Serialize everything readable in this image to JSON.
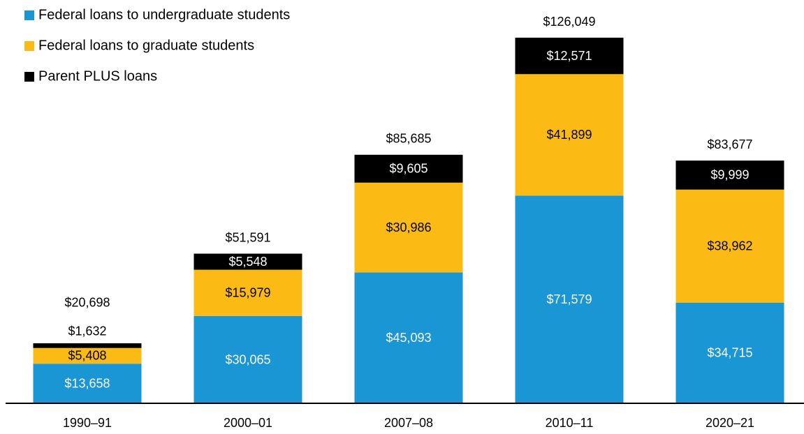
{
  "chart_data": {
    "type": "stacked_bar",
    "categories": [
      "1990–91",
      "2000–01",
      "2007–08",
      "2010–11",
      "2020–21"
    ],
    "series": [
      {
        "name": "Federal loans to undergraduate students",
        "color": "#1a96d4",
        "label_color": "#ffffff",
        "values": [
          13658,
          30065,
          45093,
          71579,
          34715
        ],
        "value_labels": [
          "$13,658",
          "$30,065",
          "$45,093",
          "$71,579",
          "$34,715"
        ]
      },
      {
        "name": "Federal loans to graduate students",
        "color": "#fcbb14",
        "label_color": "#000000",
        "values": [
          5408,
          15979,
          30986,
          41899,
          38962
        ],
        "value_labels": [
          "$5,408",
          "$15,979",
          "$30,986",
          "$41,899",
          "$38,962"
        ]
      },
      {
        "name": "Parent PLUS loans",
        "color": "#000000",
        "label_color": "#ffffff",
        "values": [
          1632,
          5548,
          9605,
          12571,
          9999
        ],
        "value_labels": [
          "$1,632",
          "$5,548",
          "$9,605",
          "$12,571",
          "$9,999"
        ]
      }
    ],
    "totals": [
      20698,
      51591,
      85685,
      126049,
      83677
    ],
    "total_labels": [
      "$20,698",
      "$51,591",
      "$85,685",
      "$126,049",
      "$83,677"
    ]
  }
}
